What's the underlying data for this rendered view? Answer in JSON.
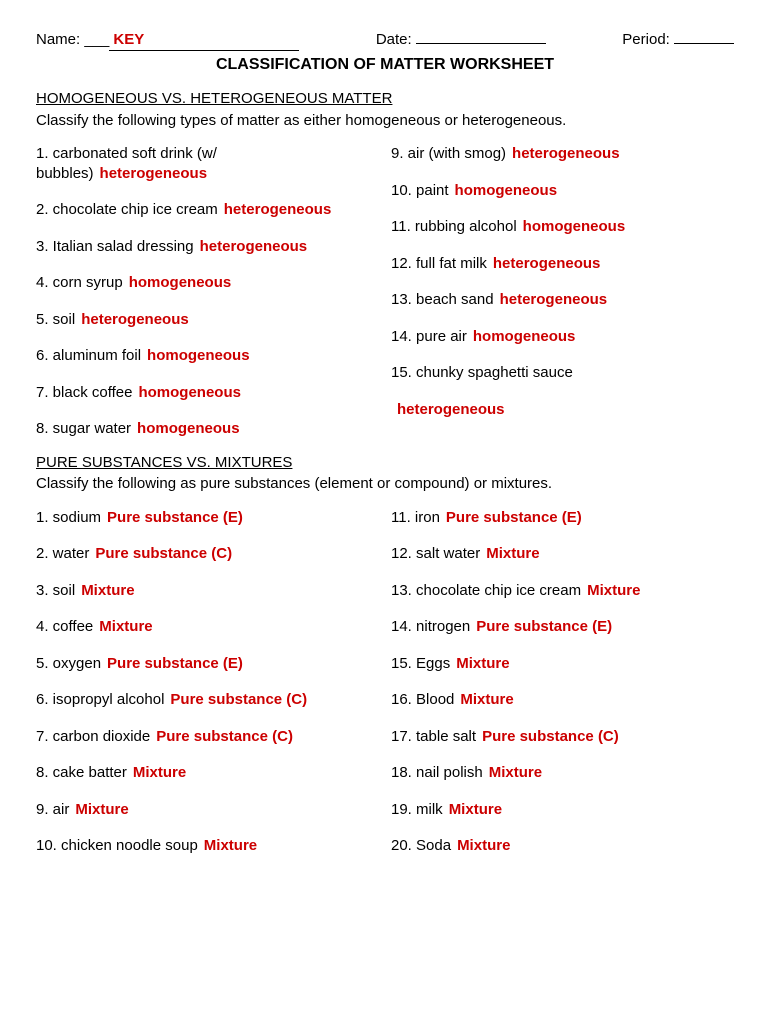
{
  "colors": {
    "answer": "#cc0000",
    "text": "#000000",
    "background": "#ffffff"
  },
  "header": {
    "name_label": "Name:",
    "name_value": "KEY",
    "date_label": "Date:",
    "date_value": "",
    "period_label": "Period:",
    "period_value": ""
  },
  "title": "CLASSIFICATION OF MATTER WORKSHEET",
  "section1": {
    "heading": "HOMOGENEOUS VS. HETEROGENEOUS MATTER",
    "instructions": "Classify the following types of matter as either homogeneous or heterogeneous.",
    "left": [
      {
        "q": "1. carbonated soft drink (w/ bubbles)",
        "a": "heterogeneous"
      },
      {
        "q": "2. chocolate chip ice cream",
        "a": "heterogeneous"
      },
      {
        "q": "3. Italian salad dressing",
        "a": "heterogeneous"
      },
      {
        "q": "4. corn syrup",
        "a": "homogeneous"
      },
      {
        "q": "5. soil",
        "a": "heterogeneous"
      },
      {
        "q": "6. aluminum foil",
        "a": "homogeneous"
      },
      {
        "q": "7. black coffee",
        "a": "homogeneous"
      },
      {
        "q": "8. sugar water",
        "a": "homogeneous"
      }
    ],
    "right": [
      {
        "q": "9. air (with smog)",
        "a": "heterogeneous"
      },
      {
        "q": "10. paint",
        "a": "homogeneous"
      },
      {
        "q": "11. rubbing alcohol",
        "a": "homogeneous"
      },
      {
        "q": "12. full fat milk",
        "a": "heterogeneous"
      },
      {
        "q": "13. beach sand",
        "a": "heterogeneous"
      },
      {
        "q": "14. pure air",
        "a": "homogeneous"
      },
      {
        "q": "15. chunky spaghetti sauce",
        "a": ""
      },
      {
        "q": "",
        "a": "heterogeneous"
      }
    ]
  },
  "section2": {
    "heading": "PURE SUBSTANCES VS. MIXTURES",
    "instructions": "Classify the following as pure substances (element or compound) or mixtures.",
    "left": [
      {
        "q": "1. sodium",
        "a": "Pure substance (E)"
      },
      {
        "q": "2. water",
        "a": "Pure substance (C)"
      },
      {
        "q": "3. soil",
        "a": "Mixture"
      },
      {
        "q": "4. coffee",
        "a": "Mixture"
      },
      {
        "q": "5. oxygen",
        "a": "Pure substance (E)"
      },
      {
        "q": "6. isopropyl alcohol",
        "a": "Pure substance (C)"
      },
      {
        "q": "7. carbon dioxide",
        "a": "Pure substance (C)"
      },
      {
        "q": "8. cake batter",
        "a": "Mixture"
      },
      {
        "q": "9. air",
        "a": "Mixture"
      },
      {
        "q": "10. chicken noodle soup",
        "a": "Mixture"
      }
    ],
    "right": [
      {
        "q": "11. iron",
        "a": "Pure substance (E)"
      },
      {
        "q": "12. salt water",
        "a": "Mixture"
      },
      {
        "q": "13. chocolate chip ice cream",
        "a": "Mixture"
      },
      {
        "q": "14. nitrogen",
        "a": "Pure substance (E)"
      },
      {
        "q": "15. Eggs",
        "a": "Mixture"
      },
      {
        "q": "16. Blood",
        "a": "Mixture"
      },
      {
        "q": "17. table salt",
        "a": "Pure substance (C)"
      },
      {
        "q": "18. nail polish",
        "a": "Mixture"
      },
      {
        "q": "19. milk",
        "a": "Mixture"
      },
      {
        "q": "20. Soda",
        "a": "Mixture"
      }
    ]
  }
}
